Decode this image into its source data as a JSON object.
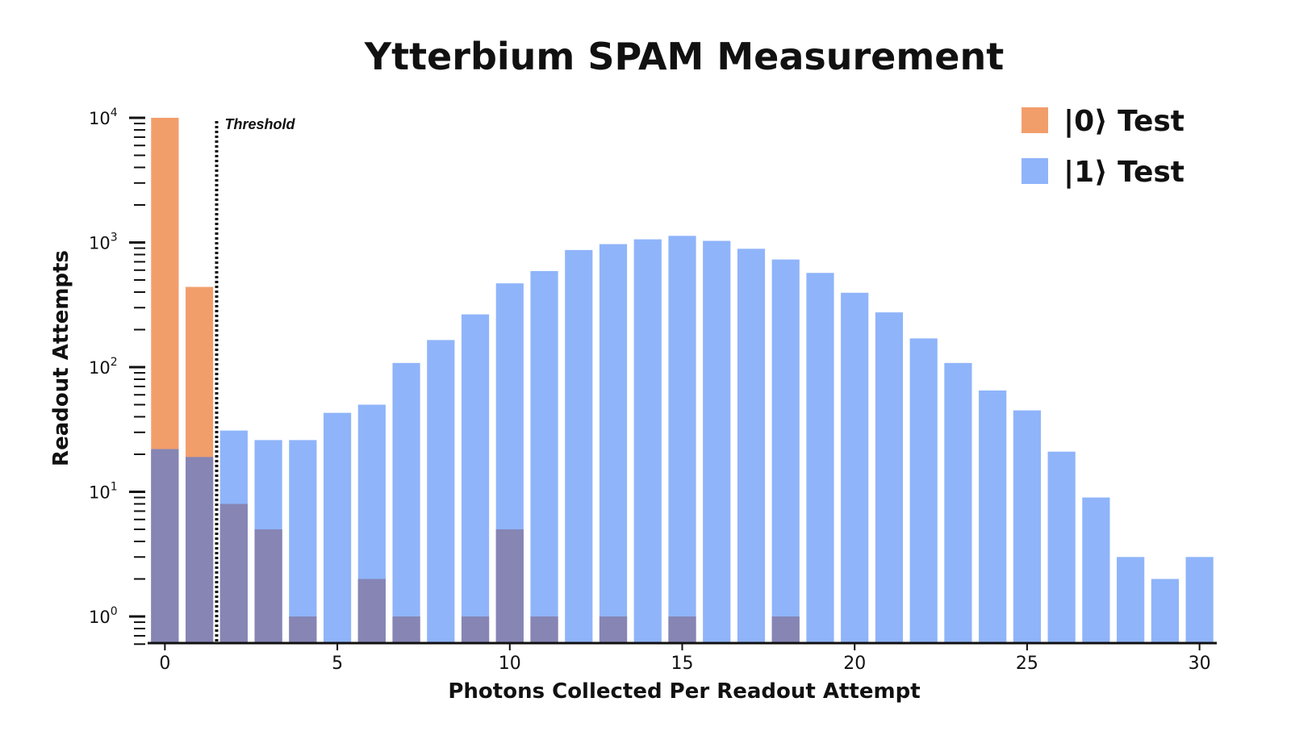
{
  "chart_data": {
    "type": "bar",
    "title": "Ytterbium SPAM Measurement",
    "xlabel": "Photons Collected Per Readout Attempt",
    "ylabel": "Readout Attempts",
    "yscale": "log",
    "ylim": [
      0.5,
      10000
    ],
    "xlim": [
      -0.5,
      30.5
    ],
    "x_ticks": [
      0,
      5,
      10,
      15,
      20,
      25,
      30
    ],
    "y_ticks": [
      {
        "base": "10",
        "exp": "0"
      },
      {
        "base": "10",
        "exp": "1"
      },
      {
        "base": "10",
        "exp": "2"
      },
      {
        "base": "10",
        "exp": "3"
      },
      {
        "base": "10",
        "exp": "4"
      }
    ],
    "x": [
      0,
      1,
      2,
      3,
      4,
      5,
      6,
      7,
      8,
      9,
      10,
      11,
      12,
      13,
      14,
      15,
      16,
      17,
      18,
      19,
      20,
      21,
      22,
      23,
      24,
      25,
      26,
      27,
      28,
      29,
      30
    ],
    "series": [
      {
        "name": "|0⟩ Test",
        "color": "#f29e6b",
        "values": [
          10000,
          440,
          8,
          5,
          1,
          0,
          2,
          1,
          0,
          1,
          5,
          1,
          0,
          1,
          0,
          1,
          0,
          0,
          1,
          0,
          0,
          0,
          0,
          0,
          0,
          0,
          0,
          0,
          0,
          0,
          0
        ]
      },
      {
        "name": "|1⟩ Test",
        "color": "#8fb4fa",
        "values": [
          22,
          19,
          31,
          26,
          26,
          43,
          50,
          108,
          165,
          265,
          470,
          590,
          870,
          970,
          1060,
          1130,
          1030,
          890,
          730,
          570,
          395,
          275,
          170,
          108,
          65,
          45,
          21,
          9,
          3,
          2,
          3
        ]
      }
    ],
    "overlap_color": "#8685b4",
    "threshold": {
      "x": 1.5,
      "label": "Threshold"
    },
    "legend_position": "top-right",
    "grid": false
  }
}
